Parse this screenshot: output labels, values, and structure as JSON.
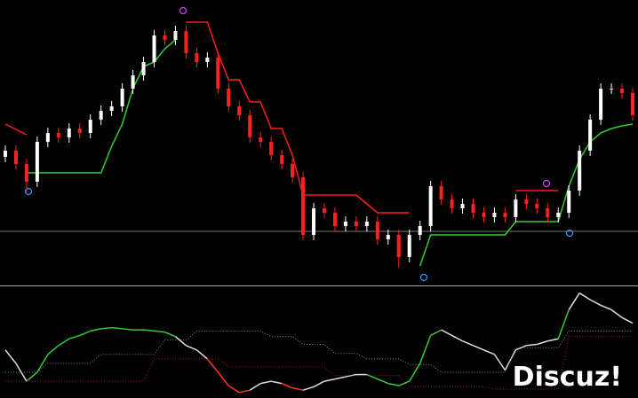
{
  "chart_data": [
    {
      "type": "candlestick",
      "ylim": [
        0,
        322
      ],
      "up_color": "#ffffff",
      "down_color": "#ff2020",
      "open": [
        145,
        152,
        137,
        117,
        162,
        172,
        167,
        177,
        172,
        187,
        197,
        202,
        222,
        237,
        252,
        282,
        277,
        287,
        262,
        252,
        257,
        222,
        202,
        192,
        167,
        162,
        147,
        137,
        122,
        57,
        87,
        82,
        67,
        72,
        67,
        72,
        52,
        57,
        32,
        57,
        67,
        112,
        97,
        87,
        92,
        82,
        77,
        82,
        77,
        97,
        92,
        87,
        77,
        82,
        107,
        152,
        187,
        222,
        222,
        217
      ],
      "close": [
        152,
        137,
        117,
        162,
        172,
        167,
        177,
        172,
        187,
        197,
        202,
        222,
        237,
        252,
        282,
        277,
        287,
        262,
        252,
        257,
        222,
        202,
        192,
        167,
        162,
        147,
        137,
        122,
        57,
        87,
        82,
        67,
        72,
        67,
        72,
        52,
        57,
        32,
        57,
        67,
        112,
        97,
        87,
        92,
        82,
        77,
        82,
        77,
        97,
        92,
        87,
        77,
        82,
        107,
        152,
        187,
        222,
        222,
        217,
        192
      ],
      "high": [
        158,
        158,
        143,
        168,
        178,
        178,
        183,
        183,
        193,
        203,
        208,
        228,
        243,
        258,
        288,
        288,
        293,
        293,
        268,
        263,
        263,
        228,
        208,
        198,
        173,
        168,
        153,
        143,
        128,
        93,
        93,
        88,
        78,
        78,
        78,
        78,
        63,
        63,
        63,
        73,
        118,
        118,
        103,
        98,
        98,
        88,
        88,
        88,
        103,
        103,
        98,
        93,
        88,
        113,
        158,
        193,
        228,
        228,
        228,
        223
      ],
      "low": [
        139,
        131,
        105,
        111,
        156,
        161,
        161,
        166,
        166,
        181,
        191,
        196,
        216,
        231,
        246,
        271,
        271,
        256,
        246,
        246,
        216,
        196,
        186,
        161,
        156,
        141,
        131,
        116,
        51,
        51,
        76,
        61,
        61,
        61,
        61,
        46,
        46,
        20,
        26,
        51,
        61,
        91,
        81,
        81,
        76,
        71,
        71,
        71,
        71,
        86,
        81,
        71,
        71,
        76,
        101,
        146,
        181,
        216,
        211,
        186
      ],
      "level_line": 61,
      "series": [
        {
          "color": "#ff1a1a",
          "values": [
            182,
            176,
            170,
            null,
            null,
            null,
            null,
            null,
            null,
            null,
            null,
            null,
            null,
            null,
            null,
            null,
            null,
            297,
            297,
            297,
            262,
            232,
            232,
            207,
            207,
            177,
            177,
            147,
            102,
            102,
            102,
            102,
            102,
            102,
            92,
            82,
            82,
            82,
            82,
            null,
            null,
            null,
            null,
            null,
            null,
            null,
            null,
            null,
            107,
            107,
            107,
            107,
            107,
            null,
            null,
            null,
            null,
            null,
            null,
            null
          ]
        },
        {
          "color": "#33cc33",
          "values": [
            null,
            null,
            127,
            127,
            127,
            127,
            127,
            127,
            127,
            127,
            157,
            182,
            222,
            247,
            252,
            267,
            277,
            null,
            null,
            null,
            null,
            null,
            null,
            null,
            null,
            null,
            null,
            null,
            null,
            null,
            null,
            null,
            null,
            null,
            null,
            null,
            null,
            null,
            null,
            22,
            57,
            57,
            57,
            57,
            57,
            57,
            57,
            57,
            72,
            72,
            72,
            72,
            72,
            112,
            142,
            162,
            172,
            177,
            180,
            182
          ]
        }
      ]
    },
    {
      "type": "line",
      "ylim": [
        0,
        100
      ],
      "series": [
        {
          "values": [
            43,
            31,
            15,
            23,
            39,
            47,
            53,
            56,
            60,
            62,
            63,
            62,
            61,
            61,
            60,
            59,
            55,
            47,
            43,
            35,
            23,
            11,
            5,
            7,
            13,
            15,
            13,
            9,
            7,
            10,
            15,
            17,
            19,
            21,
            21,
            17,
            13,
            11,
            15,
            31,
            56,
            61,
            56,
            51,
            47,
            43,
            39,
            25,
            43,
            47,
            48,
            51,
            53,
            79,
            94,
            88,
            83,
            79,
            72,
            67
          ],
          "colors": [
            "#dddddd",
            "#dddddd",
            "#dddddd",
            "#33cc33",
            "#33cc33",
            "#33cc33",
            "#33cc33",
            "#33cc33",
            "#33cc33",
            "#33cc33",
            "#33cc33",
            "#33cc33",
            "#33cc33",
            "#33cc33",
            "#33cc33",
            "#33cc33",
            "#33cc33",
            "#dddddd",
            "#dddddd",
            "#dddddd",
            "#ff3322",
            "#ff3322",
            "#ff3322",
            "#ff3322",
            "#dddddd",
            "#dddddd",
            "#dddddd",
            "#ff3322",
            "#ff3322",
            "#dddddd",
            "#dddddd",
            "#dddddd",
            "#dddddd",
            "#dddddd",
            "#dddddd",
            "#33cc33",
            "#33cc33",
            "#33cc33",
            "#33cc33",
            "#33cc33",
            "#33cc33",
            "#33cc33",
            "#dddddd",
            "#dddddd",
            "#dddddd",
            "#dddddd",
            "#dddddd",
            "#dddddd",
            "#dddddd",
            "#dddddd",
            "#dddddd",
            "#dddddd",
            "#dddddd",
            "#33cc33",
            "#dddddd",
            "#dddddd",
            "#dddddd",
            "#dddddd",
            "#dddddd",
            "#dddddd"
          ]
        },
        {
          "color": "#888888",
          "dotted": true,
          "values": [
            23,
            23,
            23,
            23,
            31,
            31,
            31,
            31,
            31,
            39,
            39,
            39,
            39,
            39,
            39,
            52,
            52,
            52,
            60,
            60,
            60,
            60,
            60,
            60,
            60,
            55,
            55,
            55,
            48,
            48,
            48,
            40,
            40,
            40,
            35,
            35,
            35,
            35,
            30,
            30,
            30,
            23,
            23,
            23,
            23,
            23,
            23,
            23,
            45,
            45,
            45,
            45,
            45,
            60,
            60,
            60,
            60,
            60,
            60,
            60
          ]
        },
        {
          "color": "#aa2222",
          "dotted": true,
          "values": [
            15,
            15,
            15,
            15,
            15,
            15,
            15,
            15,
            15,
            15,
            15,
            15,
            15,
            15,
            35,
            35,
            35,
            35,
            35,
            35,
            35,
            28,
            28,
            28,
            28,
            28,
            28,
            28,
            28,
            28,
            28,
            20,
            20,
            20,
            20,
            20,
            20,
            20,
            10,
            10,
            10,
            10,
            10,
            10,
            10,
            10,
            8,
            8,
            8,
            8,
            8,
            8,
            8,
            55,
            55,
            55,
            55,
            55,
            55,
            55
          ]
        }
      ]
    }
  ],
  "watermark": "Discuz!"
}
